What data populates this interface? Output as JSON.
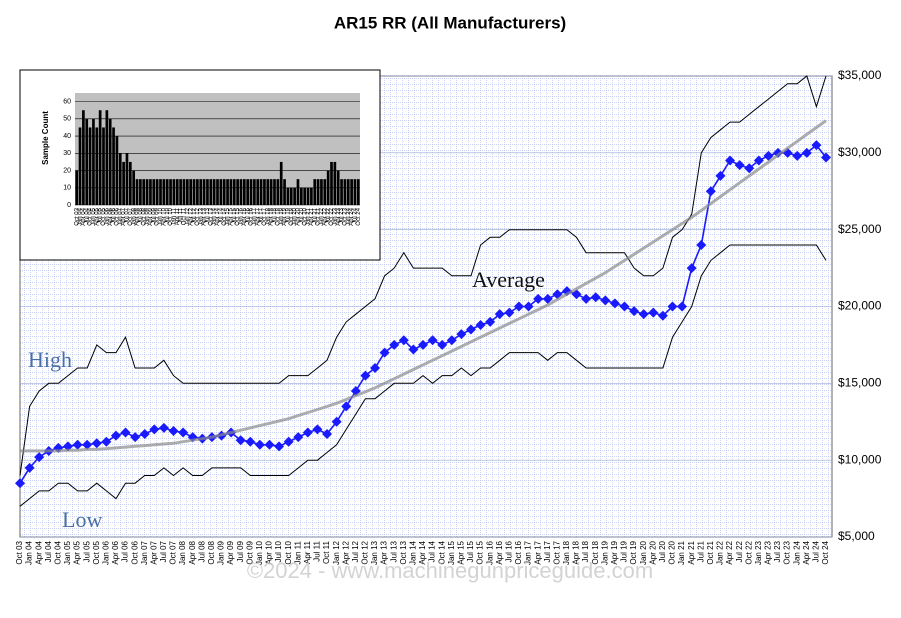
{
  "chart_data": [
    {
      "type": "line",
      "title": "AR15 RR (All Manufacturers)",
      "watermark": "©2024 - www.machinegunpriceguide.com",
      "categories": [
        "Oct 03",
        "Jan 04",
        "Apr 04",
        "Jul 04",
        "Oct 04",
        "Jan 05",
        "Apr 05",
        "Jul 05",
        "Oct 05",
        "Jan 06",
        "Apr 06",
        "Jul 06",
        "Oct 06",
        "Jan 07",
        "Apr 07",
        "Jul 07",
        "Oct 07",
        "Jan 08",
        "Apr 08",
        "Jul 08",
        "Oct 08",
        "Jan 09",
        "Apr 09",
        "Jul 09",
        "Oct 09",
        "Jan 10",
        "Apr 10",
        "Jul 10",
        "Oct 10",
        "Jan 11",
        "Apr 11",
        "Jul 11",
        "Oct 11",
        "Jan 12",
        "Apr 12",
        "Jul 12",
        "Oct 12",
        "Jan 13",
        "Apr 13",
        "Jul 13",
        "Oct 13",
        "Jan 14",
        "Apr 14",
        "Jul 14",
        "Oct 14",
        "Jan 15",
        "Apr 15",
        "Jul 15",
        "Oct 15",
        "Jan 16",
        "Apr 16",
        "Jul 16",
        "Oct 16",
        "Jan 17",
        "Apr 17",
        "Jul 17",
        "Oct 17",
        "Jan 18",
        "Apr 18",
        "Jul 18",
        "Oct 18",
        "Jan 19",
        "Apr 19",
        "Jul 19",
        "Oct 19",
        "Jan 20",
        "Apr 20",
        "Jul 20",
        "Oct 20",
        "Jan 21",
        "Apr 21",
        "Jul 21",
        "Oct 21",
        "Jan 22",
        "Apr 22",
        "Jul 22",
        "Oct 22",
        "Jan 23",
        "Apr 23",
        "Jul 23",
        "Oct 23",
        "Jan 24",
        "Apr 24",
        "Jul 24",
        "Oct 24"
      ],
      "series": [
        {
          "name": "High",
          "color": "#000000",
          "values": [
            9000,
            13500,
            14500,
            15000,
            15000,
            15500,
            16000,
            16000,
            17500,
            17000,
            17000,
            18000,
            16000,
            16000,
            16000,
            16500,
            15500,
            15000,
            15000,
            15000,
            15000,
            15000,
            15000,
            15000,
            15000,
            15000,
            15000,
            15000,
            15500,
            15500,
            15500,
            16000,
            16500,
            18000,
            19000,
            19500,
            20000,
            20500,
            22000,
            22500,
            23500,
            22500,
            22500,
            22500,
            22500,
            22000,
            22000,
            22000,
            24000,
            24500,
            24500,
            25000,
            25000,
            25000,
            25000,
            25000,
            25000,
            25000,
            24500,
            23500,
            23500,
            23500,
            23500,
            23500,
            22500,
            22000,
            22000,
            22500,
            24500,
            25000,
            26000,
            30000,
            31000,
            31500,
            32000,
            32000,
            32500,
            33000,
            33500,
            34000,
            34500,
            34500,
            35000,
            33000,
            35000
          ]
        },
        {
          "name": "Low",
          "color": "#000000",
          "values": [
            7000,
            7500,
            8000,
            8000,
            8500,
            8500,
            8000,
            8000,
            8500,
            8000,
            7500,
            8500,
            8500,
            9000,
            9000,
            9500,
            9000,
            9500,
            9000,
            9000,
            9500,
            9500,
            9500,
            9500,
            9000,
            9000,
            9000,
            9000,
            9000,
            9500,
            10000,
            10000,
            10500,
            11000,
            12000,
            13000,
            14000,
            14000,
            14500,
            15000,
            15000,
            15000,
            15500,
            15000,
            15500,
            15500,
            16000,
            15500,
            16000,
            16000,
            16500,
            17000,
            17000,
            17000,
            17000,
            16500,
            17000,
            17000,
            16500,
            16000,
            16000,
            16000,
            16000,
            16000,
            16000,
            16000,
            16000,
            16000,
            18000,
            19000,
            20000,
            22000,
            23000,
            23500,
            24000,
            24000,
            24000,
            24000,
            24000,
            24000,
            24000,
            24000,
            24000,
            24000,
            23000
          ]
        },
        {
          "name": "Average",
          "color": "#1a1aff",
          "values": [
            8500,
            9500,
            10200,
            10600,
            10800,
            10900,
            11000,
            11000,
            11100,
            11200,
            11600,
            11800,
            11500,
            11700,
            12000,
            12100,
            11900,
            11800,
            11500,
            11400,
            11500,
            11600,
            11800,
            11300,
            11200,
            11000,
            11000,
            10900,
            11200,
            11500,
            11800,
            12000,
            11700,
            12500,
            13500,
            14500,
            15500,
            16000,
            17000,
            17500,
            17800,
            17200,
            17500,
            17800,
            17500,
            17800,
            18200,
            18500,
            18800,
            19000,
            19500,
            19600,
            20000,
            20000,
            20500,
            20500,
            20800,
            21000,
            20800,
            20500,
            20600,
            20400,
            20200,
            20000,
            19700,
            19500,
            19600,
            19400,
            20000,
            20000,
            22500,
            24000,
            27500,
            28500,
            29500,
            29200,
            29000,
            29500,
            29800,
            30000,
            30000,
            29800,
            30000,
            30500,
            29700
          ]
        },
        {
          "color": "#8a8a8a",
          "values": [
            10600,
            10600,
            10600,
            10600,
            10600,
            10650,
            10650,
            10700,
            10700,
            10750,
            10800,
            10850,
            10900,
            10950,
            11000,
            11050,
            11100,
            11200,
            11300,
            11400,
            11500,
            11650,
            11800,
            11950,
            12100,
            12250,
            12400,
            12550,
            12700,
            12900,
            13100,
            13300,
            13500,
            13700,
            13950,
            14200,
            14450,
            14700,
            15000,
            15300,
            15600,
            15900,
            16200,
            16500,
            16800,
            17100,
            17400,
            17700,
            18000,
            18300,
            18600,
            18900,
            19200,
            19500,
            19800,
            20100,
            20450,
            20800,
            21150,
            21500,
            21850,
            22200,
            22600,
            23000,
            23400,
            23800,
            24200,
            24600,
            25000,
            25400,
            25800,
            26250,
            26700,
            27150,
            27600,
            28050,
            28500,
            28950,
            29400,
            29850,
            30300,
            30750,
            31200,
            31650,
            32100
          ]
        }
      ],
      "ylim": [
        5000,
        35000
      ],
      "yticks": [
        {
          "value": 5000,
          "label": "$5,000"
        },
        {
          "value": 10000,
          "label": "$10,000"
        },
        {
          "value": 15000,
          "label": "$15,000"
        },
        {
          "value": 20000,
          "label": "$20,000"
        },
        {
          "value": 25000,
          "label": "$25,000"
        },
        {
          "value": 30000,
          "label": "$30,000"
        },
        {
          "value": 35000,
          "label": "$35,000"
        }
      ],
      "grid": true
    },
    {
      "type": "bar",
      "ylabel": "Sample Count",
      "color": "#000000",
      "categories": [
        "Oct 03",
        "Jan 04",
        "Apr 04",
        "Jul 04",
        "Oct 04",
        "Jan 05",
        "Apr 05",
        "Jul 05",
        "Oct 05",
        "Jan 06",
        "Apr 06",
        "Jul 06",
        "Oct 06",
        "Jan 07",
        "Apr 07",
        "Jul 07",
        "Oct 07",
        "Jan 08",
        "Apr 08",
        "Jul 08",
        "Oct 08",
        "Jan 09",
        "Apr 09",
        "Jul 09",
        "Oct 09",
        "Jan 10",
        "Apr 10",
        "Jul 10",
        "Oct 10",
        "Jan 11",
        "Apr 11",
        "Jul 11",
        "Oct 11",
        "Jan 12",
        "Apr 12",
        "Jul 12",
        "Oct 12",
        "Jan 13",
        "Apr 13",
        "Jul 13",
        "Oct 13",
        "Jan 14",
        "Apr 14",
        "Jul 14",
        "Oct 14",
        "Jan 15",
        "Apr 15",
        "Jul 15",
        "Oct 15",
        "Jan 16",
        "Apr 16",
        "Jul 16",
        "Oct 16",
        "Jan 17",
        "Apr 17",
        "Jul 17",
        "Oct 17",
        "Jan 18",
        "Apr 18",
        "Jul 18",
        "Oct 18",
        "Jan 19",
        "Apr 19",
        "Jul 19",
        "Oct 19",
        "Jan 20",
        "Apr 20",
        "Jul 20",
        "Oct 20",
        "Jan 21",
        "Apr 21",
        "Jul 21",
        "Oct 21",
        "Jan 22",
        "Apr 22",
        "Jul 22",
        "Oct 22",
        "Jan 23",
        "Apr 23",
        "Jul 23",
        "Oct 23",
        "Jan 24",
        "Apr 24",
        "Jul 24",
        "Oct 24"
      ],
      "values": [
        20,
        45,
        55,
        50,
        45,
        50,
        45,
        55,
        45,
        55,
        50,
        45,
        40,
        30,
        25,
        30,
        25,
        20,
        15,
        15,
        15,
        15,
        15,
        15,
        15,
        15,
        15,
        15,
        15,
        15,
        15,
        15,
        15,
        15,
        15,
        15,
        15,
        15,
        15,
        15,
        15,
        15,
        15,
        15,
        15,
        15,
        15,
        15,
        15,
        15,
        15,
        15,
        15,
        15,
        15,
        15,
        15,
        15,
        15,
        15,
        15,
        25,
        15,
        10,
        10,
        10,
        15,
        10,
        10,
        10,
        10,
        15,
        15,
        15,
        15,
        20,
        25,
        25,
        20,
        15,
        15,
        15,
        15,
        15,
        15
      ],
      "ylim": [
        0,
        65
      ],
      "yticks": [
        0,
        10,
        20,
        30,
        40,
        50,
        60
      ],
      "grid": true
    }
  ]
}
